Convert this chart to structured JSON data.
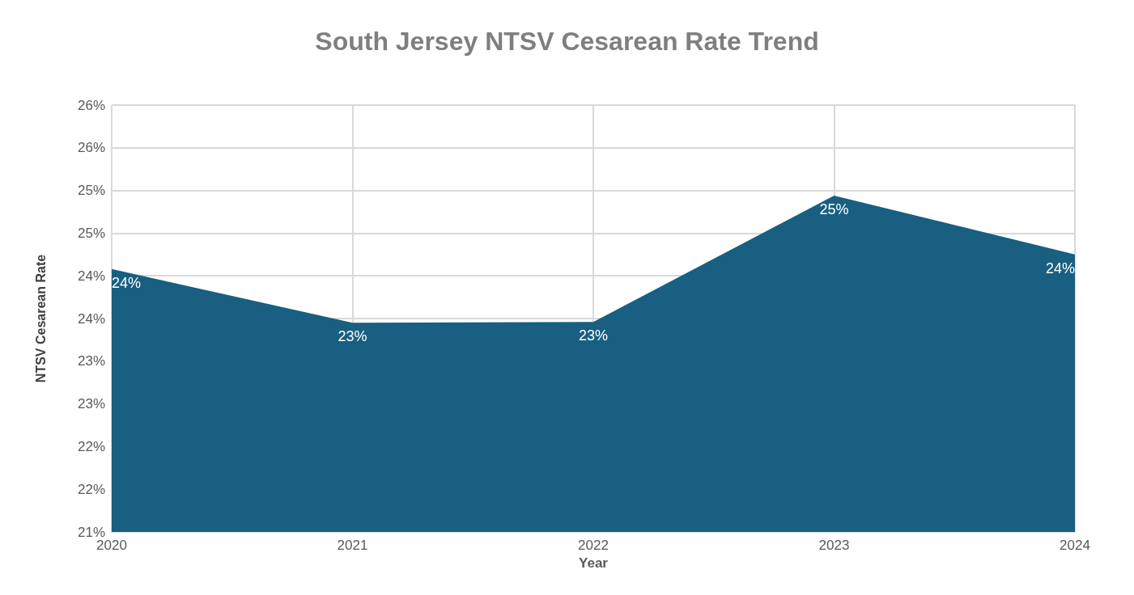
{
  "chart_data": {
    "type": "area",
    "title": "South Jersey NTSV Cesarean Rate Trend",
    "xlabel": "Year",
    "ylabel": "NTSV Cesarean Rate",
    "categories": [
      "2020",
      "2021",
      "2022",
      "2023",
      "2024"
    ],
    "series": [
      {
        "color": "#185f81",
        "values": [
          24.08,
          23.45,
          23.46,
          24.94,
          24.25
        ],
        "value_labels": [
          "24%",
          "23%",
          "23%",
          "25%",
          "24%"
        ]
      }
    ],
    "ylim": [
      21,
      26
    ],
    "yticks": [
      {
        "value": 21,
        "label": "21%"
      },
      {
        "value": 21.5,
        "label": "22%"
      },
      {
        "value": 22,
        "label": "22%"
      },
      {
        "value": 22.5,
        "label": "23%"
      },
      {
        "value": 23,
        "label": "23%"
      },
      {
        "value": 23.5,
        "label": "24%"
      },
      {
        "value": 24,
        "label": "24%"
      },
      {
        "value": 24.5,
        "label": "25%"
      },
      {
        "value": 25,
        "label": "25%"
      },
      {
        "value": 25.5,
        "label": "26%"
      },
      {
        "value": 26,
        "label": "26%"
      }
    ],
    "grid": true
  }
}
